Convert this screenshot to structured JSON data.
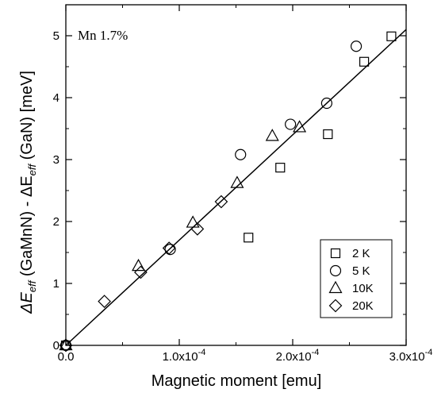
{
  "chart_data": {
    "type": "scatter",
    "annotation": "Mn 1.7%",
    "xlabel": "Magnetic moment [emu]",
    "ylabel": {
      "p1": "ΔE",
      "p1_sub": "eff",
      "p2": " (GaMnN) - ΔE",
      "p2_sub": "eff",
      "p3": " (GaN) [meV]"
    },
    "xlim": [
      0,
      0.0003
    ],
    "ylim": [
      0,
      5.5
    ],
    "x_ticks": [
      {
        "value": 0.0,
        "label": "0.0"
      },
      {
        "value": 0.0001,
        "mant": "1.0x10",
        "exp": "-4"
      },
      {
        "value": 0.0002,
        "mant": "2.0x10",
        "exp": "-4"
      },
      {
        "value": 0.0003,
        "mant": "3.0x10",
        "exp": "-4"
      }
    ],
    "y_ticks": [
      {
        "value": 0,
        "label": "0"
      },
      {
        "value": 1,
        "label": "1"
      },
      {
        "value": 2,
        "label": "2"
      },
      {
        "value": 3,
        "label": "3"
      },
      {
        "value": 4,
        "label": "4"
      },
      {
        "value": 5,
        "label": "5"
      }
    ],
    "legend_position": "bottom-right",
    "series": [
      {
        "name": "2 K",
        "marker": "square",
        "points": [
          [
            0.0,
            0.0
          ],
          [
            0.000161,
            1.74
          ],
          [
            0.000189,
            2.87
          ],
          [
            0.000231,
            3.41
          ],
          [
            0.000263,
            4.58
          ],
          [
            0.000287,
            4.99
          ]
        ]
      },
      {
        "name": "5 K",
        "marker": "circle",
        "points": [
          [
            0.0,
            0.0
          ],
          [
            9.2e-05,
            1.55
          ],
          [
            0.000154,
            3.08
          ],
          [
            0.000198,
            3.57
          ],
          [
            0.00023,
            3.91
          ],
          [
            0.000256,
            4.83
          ]
        ]
      },
      {
        "name": "10K",
        "marker": "triangle",
        "points": [
          [
            0.0,
            0.0
          ],
          [
            6.4e-05,
            1.28
          ],
          [
            0.000112,
            1.98
          ],
          [
            0.000151,
            2.62
          ],
          [
            0.000182,
            3.38
          ],
          [
            0.000206,
            3.52
          ]
        ]
      },
      {
        "name": "20K",
        "marker": "diamond",
        "points": [
          [
            0.0,
            0.0
          ],
          [
            3.4e-05,
            0.71
          ],
          [
            6.6e-05,
            1.18
          ],
          [
            9.1e-05,
            1.57
          ],
          [
            0.000116,
            1.88
          ],
          [
            0.000137,
            2.32
          ]
        ]
      }
    ],
    "fit_line": {
      "x": [
        0.0,
        0.0003
      ],
      "y": [
        0.0,
        5.1
      ]
    }
  }
}
